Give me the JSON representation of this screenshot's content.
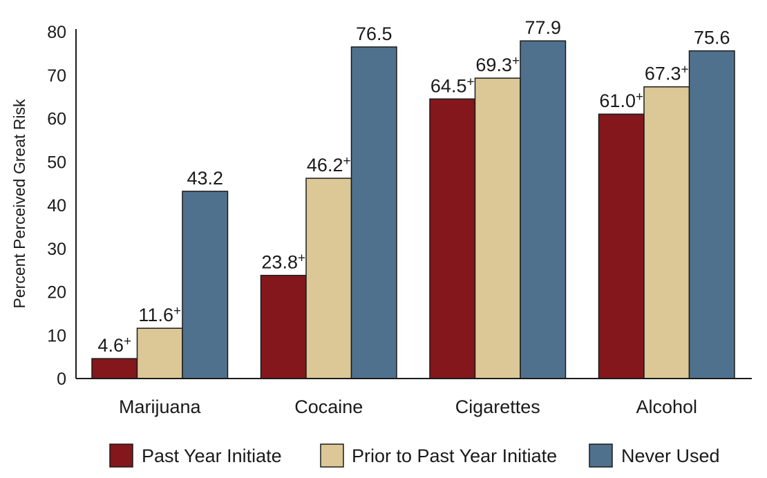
{
  "chart_data": {
    "type": "bar",
    "title": "",
    "xlabel": "",
    "ylabel": "Percent  Perceived Great Risk",
    "ylim": [
      0,
      80
    ],
    "yticks": [
      0,
      10,
      20,
      30,
      40,
      50,
      60,
      70,
      80
    ],
    "categories": [
      "Marijuana",
      "Cocaine",
      "Cigarettes",
      "Alcohol"
    ],
    "series": [
      {
        "name": "Past Year Initiate",
        "color": "#83171b",
        "values": [
          4.6,
          23.8,
          64.5,
          61.0
        ],
        "labels": [
          "4.6",
          "23.8",
          "64.5",
          "61.0"
        ],
        "markers": [
          "+",
          "+",
          "+",
          "+"
        ]
      },
      {
        "name": "Prior to Past Year Initiate",
        "color": "#dcc896",
        "values": [
          11.6,
          46.2,
          69.3,
          67.3
        ],
        "labels": [
          "11.6",
          "46.2",
          "69.3",
          "67.3"
        ],
        "markers": [
          "+",
          "+",
          "+",
          "+"
        ]
      },
      {
        "name": "Never Used",
        "color": "#4f718d",
        "values": [
          43.2,
          76.5,
          77.9,
          75.6
        ],
        "labels": [
          "43.2",
          "76.5",
          "77.9",
          "75.6"
        ],
        "markers": [
          "",
          "",
          "",
          ""
        ]
      }
    ],
    "legend": "bottom"
  }
}
